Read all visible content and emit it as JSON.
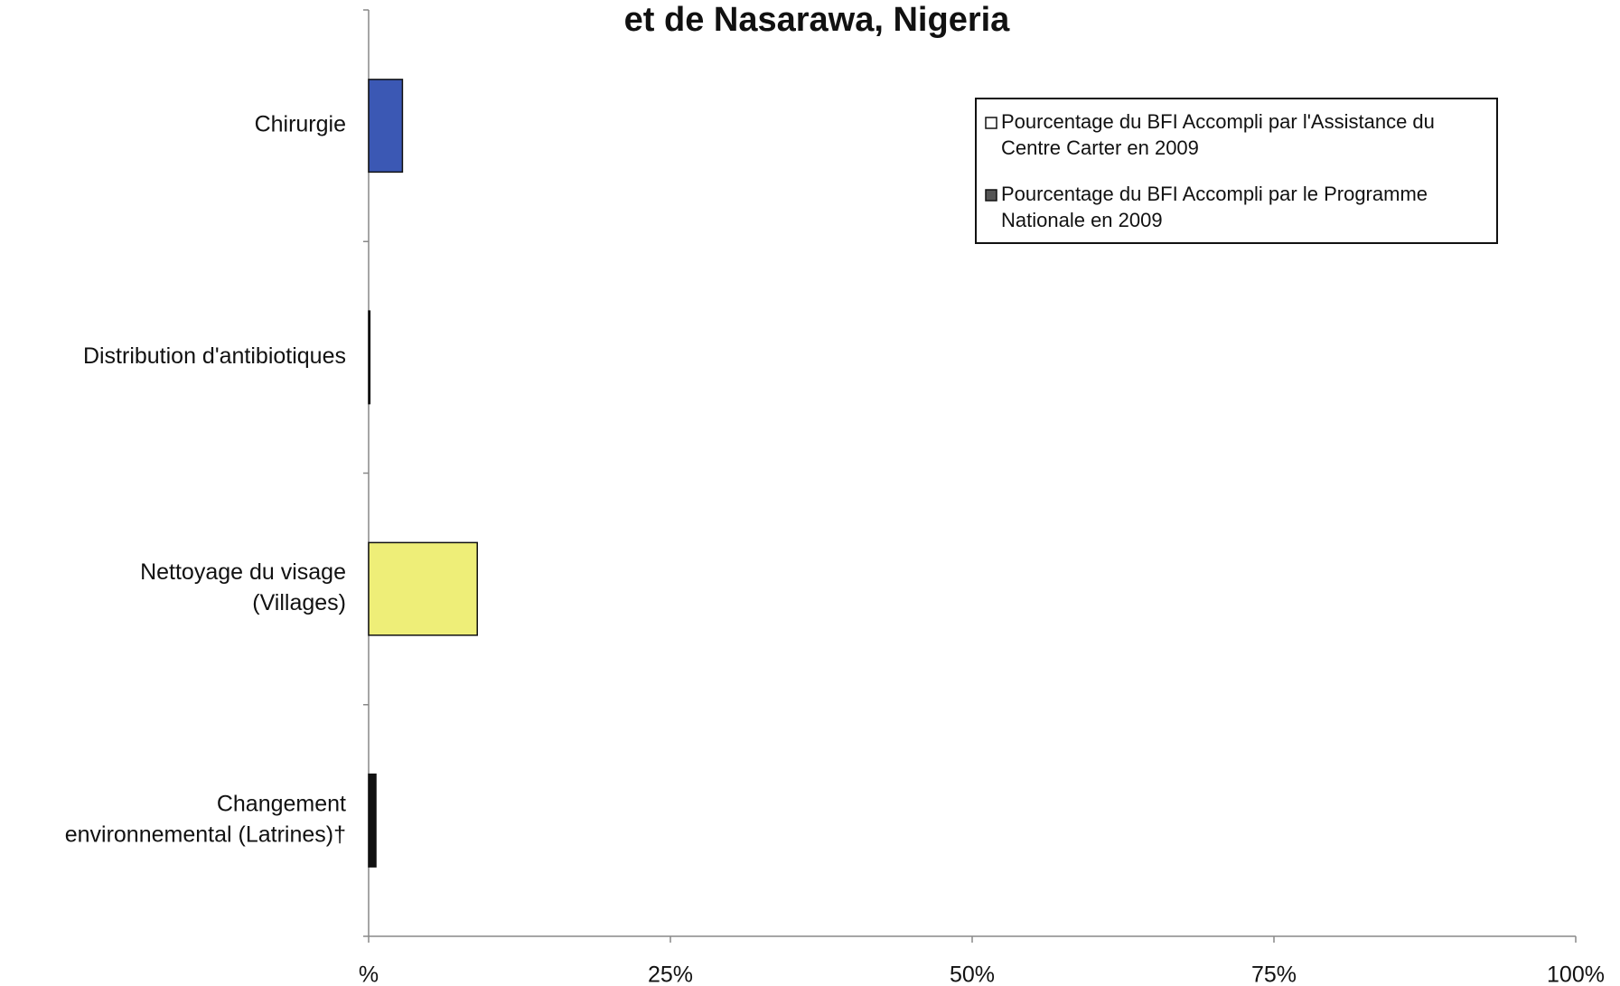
{
  "chart_data": {
    "type": "hbar",
    "title": "et de Nasarawa, Nigeria",
    "categories": [
      [
        "Chirurgie"
      ],
      [
        "Distribution d'antibiotiques"
      ],
      [
        "Nettoyage du visage",
        "(Villages)"
      ],
      [
        "Changement",
        "environnemental (Latrines)†"
      ]
    ],
    "values": [
      2.8,
      0.1,
      9.0,
      0.6
    ],
    "colors": [
      "#3b58b4",
      "#222222",
      "#eeee78",
      "#111111"
    ],
    "xlim": [
      0,
      100
    ],
    "xticks": [
      {
        "value": 0,
        "label": "%"
      },
      {
        "value": 25,
        "label": "25%"
      },
      {
        "value": 50,
        "label": "50%"
      },
      {
        "value": 75,
        "label": "75%"
      },
      {
        "value": 100,
        "label": "100%"
      }
    ],
    "legend": [
      {
        "label": [
          "Pourcentage du BFI Accompli par l'Assistance du",
          "Centre Carter en 2009"
        ],
        "color": "#ffffff"
      },
      {
        "label": [
          "Pourcentage du BFI Accompli par le Programme",
          "Nationale en 2009"
        ],
        "color": "#555555"
      }
    ]
  }
}
